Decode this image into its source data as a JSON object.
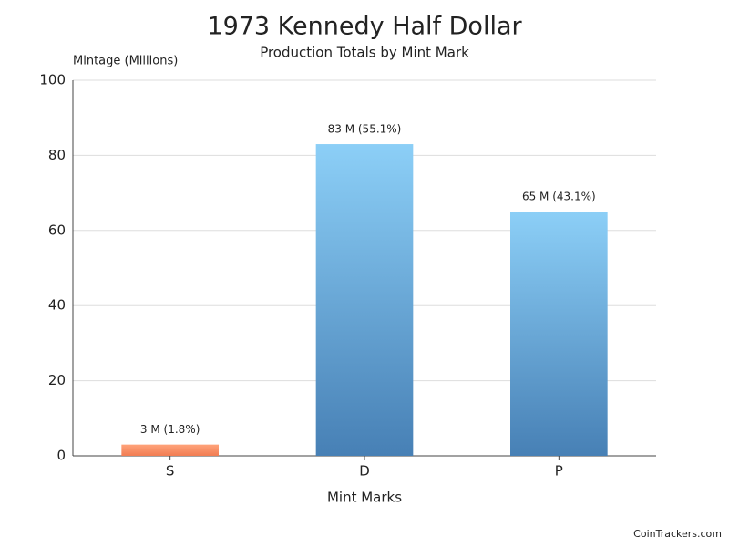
{
  "chart_data": {
    "type": "bar",
    "title": "1973 Kennedy Half Dollar",
    "subtitle": "Production Totals by Mint Mark",
    "y_label": "Mintage (Millions)",
    "x_label": "Mint Marks",
    "categories": [
      "S",
      "D",
      "P"
    ],
    "values": [
      3,
      83,
      65
    ],
    "value_labels": [
      "3 M (1.8%)",
      "83 M (55.1%)",
      "65 M (43.1%)"
    ],
    "colors": [
      [
        "#ffa37a",
        "#f17c52"
      ],
      [
        "#8ccff7",
        "#4780b5"
      ],
      [
        "#8ccff7",
        "#4780b5"
      ]
    ],
    "ylim": [
      0,
      100
    ],
    "yticks": [
      0,
      20,
      40,
      60,
      80,
      100
    ],
    "grid": true,
    "credit": "CoinTrackers.com"
  }
}
